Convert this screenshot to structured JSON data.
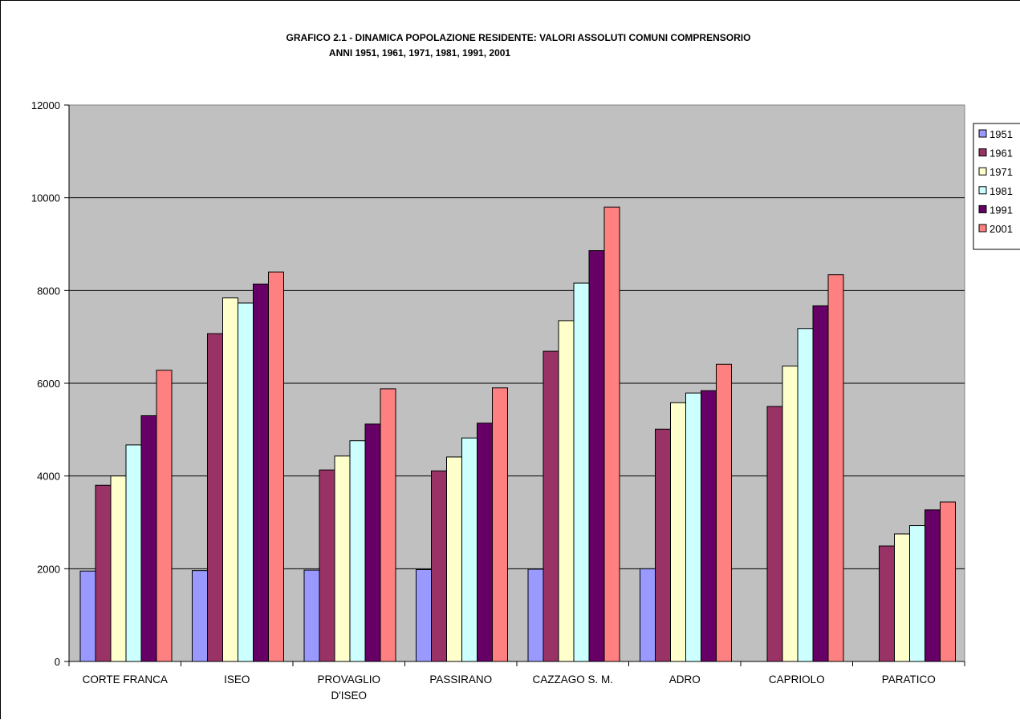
{
  "chart_data": {
    "type": "bar",
    "title": "GRAFICO 2.1 - DINAMICA POPOLAZIONE RESIDENTE: VALORI ASSOLUTI COMUNI COMPRENSORIO",
    "subtitle": "ANNI 1951, 1961, 1971, 1981, 1991, 2001",
    "xlabel": "",
    "ylabel": "",
    "ylim": [
      0,
      12000
    ],
    "yticks": [
      "0",
      "2000",
      "4000",
      "6000",
      "8000",
      "10000",
      "12000"
    ],
    "grid": true,
    "legend_position": "right",
    "categories": [
      [
        "CORTE FRANCA"
      ],
      [
        "ISEO"
      ],
      [
        "PROVAGLIO",
        "D'ISEO"
      ],
      [
        "PASSIRANO"
      ],
      [
        "CAZZAGO S. M."
      ],
      [
        "ADRO"
      ],
      [
        "CAPRIOLO"
      ],
      [
        "PARATICO"
      ]
    ],
    "series": [
      {
        "name": "1951",
        "color": "#9999FF",
        "values": [
          1950,
          1960,
          1970,
          1980,
          1990,
          2000,
          null,
          null
        ]
      },
      {
        "name": "1961",
        "color": "#993366",
        "values": [
          3800,
          7070,
          4130,
          4110,
          6690,
          5010,
          5500,
          2490
        ]
      },
      {
        "name": "1971",
        "color": "#FFFFCC",
        "values": [
          4000,
          7840,
          4430,
          4410,
          7350,
          5580,
          6370,
          2750
        ]
      },
      {
        "name": "1981",
        "color": "#CCFFFF",
        "values": [
          4670,
          7730,
          4760,
          4820,
          8160,
          5790,
          7180,
          2930
        ]
      },
      {
        "name": "1991",
        "color": "#660066",
        "values": [
          5300,
          8140,
          5120,
          5140,
          8860,
          5840,
          7670,
          3270
        ]
      },
      {
        "name": "2001",
        "color": "#FF8080",
        "values": [
          6280,
          8400,
          5880,
          5900,
          9800,
          6410,
          8340,
          3440
        ]
      }
    ]
  }
}
